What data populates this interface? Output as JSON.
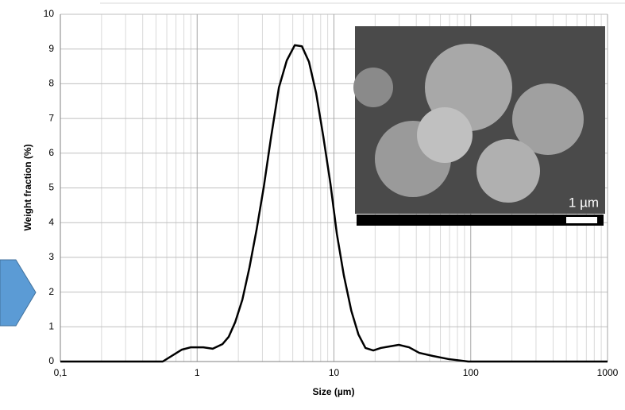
{
  "chart_data": {
    "type": "line",
    "xlabel": "Size (µm)",
    "ylabel": "Weight fraction (%)",
    "log_x": true,
    "grid": true,
    "xlim": [
      0.1,
      1000
    ],
    "ylim": [
      0,
      10
    ],
    "xticks": [
      {
        "value": 0.1,
        "label": "0,1"
      },
      1,
      10,
      100,
      1000
    ],
    "xminorticks": [
      0.2,
      0.3,
      0.4,
      0.5,
      0.6,
      0.7,
      0.8,
      0.9,
      2,
      3,
      4,
      5,
      6,
      7,
      8,
      9,
      20,
      30,
      40,
      50,
      60,
      70,
      80,
      90,
      200,
      300,
      400,
      500,
      600,
      700,
      800,
      900
    ],
    "yticks": [
      0,
      1,
      2,
      3,
      4,
      5,
      6,
      7,
      8,
      9,
      10
    ],
    "inset_scale_label": "1 µm",
    "series": [
      {
        "color": "#000000",
        "x": [
          0.1,
          0.56,
          0.77,
          0.9,
          1.11,
          1.3,
          1.53,
          1.7,
          1.9,
          2.14,
          2.41,
          2.72,
          3.07,
          3.46,
          3.96,
          4.52,
          5.17,
          5.83,
          6.57,
          7.41,
          8.36,
          9.42,
          10.5,
          11.8,
          13.4,
          15.1,
          17,
          19.4,
          22,
          25,
          29.8,
          35.4,
          42,
          52.8,
          69,
          96,
          1000
        ],
        "values": [
          0,
          0,
          0.34,
          0.41,
          0.41,
          0.37,
          0.5,
          0.71,
          1.14,
          1.78,
          2.7,
          3.8,
          5.03,
          6.43,
          7.89,
          8.67,
          9.11,
          9.08,
          8.63,
          7.73,
          6.48,
          5.13,
          3.68,
          2.49,
          1.46,
          0.78,
          0.39,
          0.32,
          0.39,
          0.43,
          0.48,
          0.41,
          0.25,
          0.16,
          0.07,
          0,
          0
        ]
      }
    ]
  }
}
